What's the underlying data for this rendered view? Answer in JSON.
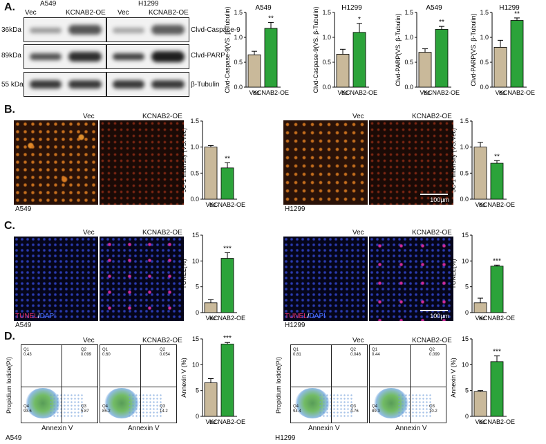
{
  "panels": {
    "a": "A.",
    "b": "B.",
    "c": "C.",
    "d": "D."
  },
  "labels": {
    "a549": "A549",
    "h1299": "H1299",
    "vec": "Vec",
    "oe": "KCNAB2-OE",
    "kd36": "36kDa",
    "kd89": "89kDa",
    "kd55": "55 kDa",
    "casp9": "Clvd-Caspase-9",
    "parp": "Clvd-PARP",
    "tub": "β-Tubulin",
    "scale": "100μm",
    "tunel": "TUNEL",
    "slash": "/",
    "dapi": "DAPI",
    "annexin": "Annexin V",
    "pi": "Propidium Iodide(PI)"
  },
  "facs": [
    {
      "q1": "0.43",
      "q2": "0.099",
      "q3": "5.87",
      "q4": "93.6"
    },
    {
      "q1": "0.60",
      "q2": "0.054",
      "q3": "14.2",
      "q4": "85.2"
    },
    {
      "q1": "0.81",
      "q2": "0.046",
      "q3": "4.76",
      "q4": "94.4"
    },
    {
      "q1": "0.44",
      "q2": "0.099",
      "q3": "10.2",
      "q4": "89.3"
    }
  ],
  "facs_qlabels": [
    "Q1",
    "Q2",
    "Q3",
    "Q4"
  ],
  "colors": {
    "vec": "#c9b99a",
    "oe": "#2ca33a",
    "band": "#3a3a3a"
  },
  "chart_data": [
    {
      "type": "bar",
      "title": "A549",
      "ylabel": "Clvd-Caspase-9(VS. β-Tubulin)",
      "categories": [
        "Vec",
        "KCNAB2-OE"
      ],
      "values": [
        0.65,
        1.18
      ],
      "errors": [
        0.07,
        0.12
      ],
      "ylim": [
        0,
        1.5
      ],
      "yticks": [
        "0.0",
        "0.5",
        "1.0",
        "1.5"
      ],
      "sig": "**"
    },
    {
      "type": "bar",
      "title": "H1299",
      "ylabel": "Clvd-Caspase-9(VS. β-Tubulin)",
      "categories": [
        "Vec",
        "KCNAB2-OE"
      ],
      "values": [
        0.66,
        1.1
      ],
      "errors": [
        0.1,
        0.18
      ],
      "ylim": [
        0,
        1.5
      ],
      "yticks": [
        "0.0",
        "0.5",
        "1.0",
        "1.5"
      ],
      "sig": "*"
    },
    {
      "type": "bar",
      "title": "A549",
      "ylabel": "Clvd-PARP(VS. β-Tubulin)",
      "categories": [
        "Vec",
        "KCNAB2-OE"
      ],
      "values": [
        0.7,
        1.16
      ],
      "errors": [
        0.07,
        0.06
      ],
      "ylim": [
        0,
        1.5
      ],
      "yticks": [
        "0.0",
        "0.5",
        "1.0",
        "1.5"
      ],
      "sig": "**"
    },
    {
      "type": "bar",
      "title": "H1299",
      "ylabel": "Clvd-PARP(VS. β-Tubulin)",
      "categories": [
        "Vec",
        "KCNAB2-OE"
      ],
      "values": [
        0.8,
        1.34
      ],
      "errors": [
        0.14,
        0.05
      ],
      "ylim": [
        0,
        1.5
      ],
      "yticks": [
        "0.0",
        "0.5",
        "1.0",
        "1.5"
      ],
      "sig": "**"
    },
    {
      "type": "bar",
      "title": "",
      "ylabel": "JC-1 Intensity (VS.Vec)",
      "categories": [
        "Vec",
        "KCNAB2-OE"
      ],
      "values": [
        1.0,
        0.6
      ],
      "errors": [
        0.03,
        0.1
      ],
      "ylim": [
        0,
        1.5
      ],
      "yticks": [
        "0.0",
        "0.5",
        "1.0",
        "1.5"
      ],
      "sig": "**"
    },
    {
      "type": "bar",
      "title": "",
      "ylabel": "JC-1 Intensity (VS.Vec)",
      "categories": [
        "Vec",
        "KCNAB2-OE"
      ],
      "values": [
        1.0,
        0.69
      ],
      "errors": [
        0.09,
        0.05
      ],
      "ylim": [
        0,
        1.5
      ],
      "yticks": [
        "0.0",
        "0.5",
        "1.0",
        "1.5"
      ],
      "sig": "**"
    },
    {
      "type": "bar",
      "title": "",
      "ylabel": "TUNEL(%)",
      "categories": [
        "Vec",
        "KCNAB2-OE"
      ],
      "values": [
        1.9,
        10.5
      ],
      "errors": [
        0.6,
        1.1
      ],
      "ylim": [
        0,
        15
      ],
      "yticks": [
        "0",
        "5",
        "10",
        "15"
      ],
      "sig": "***"
    },
    {
      "type": "bar",
      "title": "",
      "ylabel": "TUNEL(%)",
      "categories": [
        "Vec",
        "KCNAB2-OE"
      ],
      "values": [
        1.9,
        9.0
      ],
      "errors": [
        0.9,
        0.2
      ],
      "ylim": [
        0,
        15
      ],
      "yticks": [
        "0",
        "5",
        "10",
        "15"
      ],
      "sig": "***"
    },
    {
      "type": "bar",
      "title": "",
      "ylabel": "Annexin V (%)",
      "categories": [
        "Vec",
        "KCNAB2-OE"
      ],
      "values": [
        6.5,
        14.0
      ],
      "errors": [
        0.8,
        0.3
      ],
      "ylim": [
        0,
        15
      ],
      "yticks": [
        "0",
        "5",
        "10",
        "15"
      ],
      "sig": "***"
    },
    {
      "type": "bar",
      "title": "",
      "ylabel": "Annexin V (%)",
      "categories": [
        "Vec",
        "KCNAB2-OE"
      ],
      "values": [
        4.8,
        10.6
      ],
      "errors": [
        0.2,
        1.1
      ],
      "ylim": [
        0,
        15
      ],
      "yticks": [
        "0",
        "5",
        "10",
        "15"
      ],
      "sig": "***"
    }
  ]
}
